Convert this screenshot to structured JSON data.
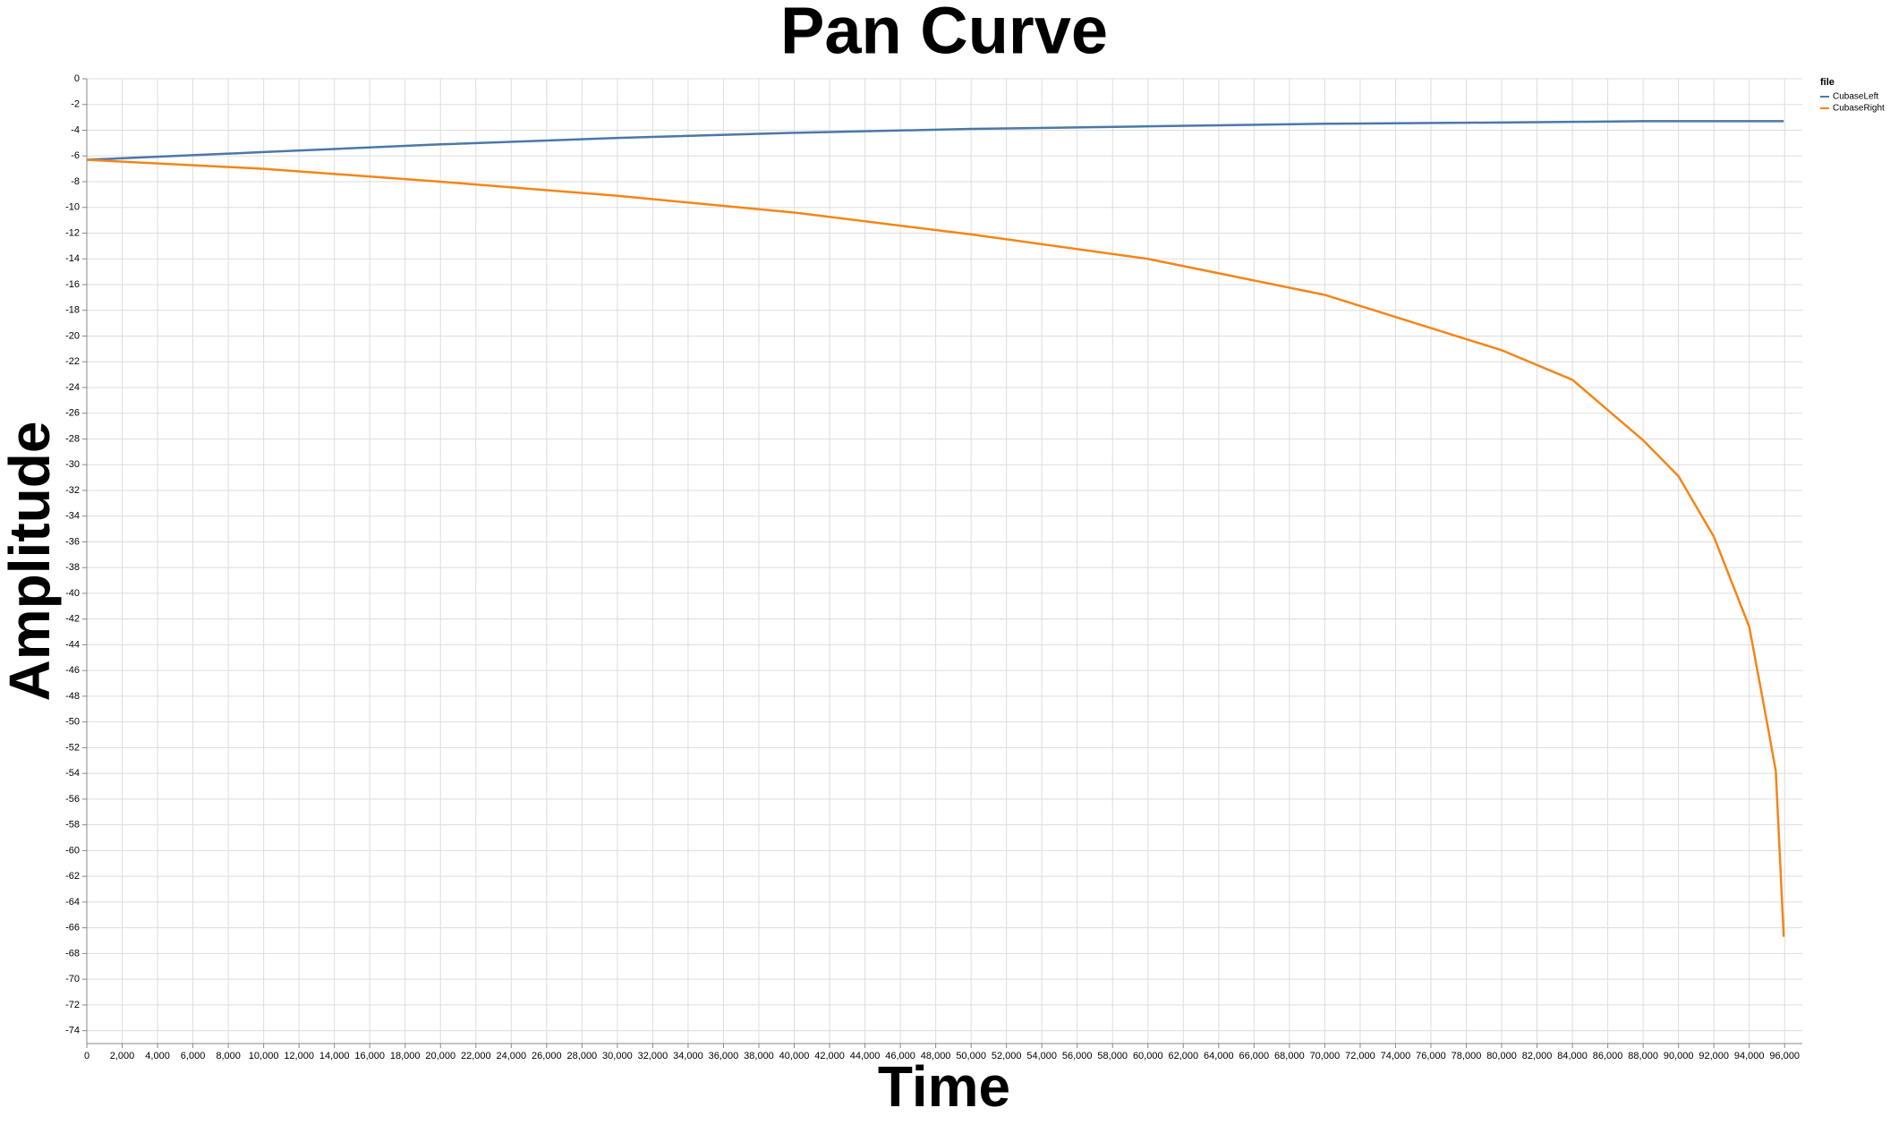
{
  "chart_data": {
    "type": "line",
    "title": "Pan Curve",
    "x_label": "Time",
    "y_label": "Amplitude",
    "legend_title": "file",
    "legend_position": "top-right",
    "grid": true,
    "x": [
      0,
      10000,
      20000,
      30000,
      40000,
      50000,
      60000,
      70000,
      80000,
      84000,
      88000,
      90000,
      92000,
      94000,
      95000,
      95500,
      95950
    ],
    "series": [
      {
        "name": "CubaseLeft",
        "color": "#4c78a8",
        "values": [
          -6.3,
          -5.7,
          -5.1,
          -4.6,
          -4.2,
          -3.9,
          -3.7,
          -3.5,
          -3.4,
          -3.35,
          -3.3,
          -3.3,
          -3.3,
          -3.3,
          -3.3,
          -3.3,
          -3.3
        ]
      },
      {
        "name": "CubaseRight",
        "color": "#f58518",
        "values": [
          -6.3,
          -7.0,
          -8.0,
          -9.1,
          -10.4,
          -12.1,
          -14.0,
          -16.8,
          -21.1,
          -23.4,
          -28.1,
          -30.9,
          -35.6,
          -42.6,
          -50,
          -53.8,
          -66.7
        ]
      }
    ],
    "xlim": [
      0,
      97000
    ],
    "ylim": [
      -75,
      0
    ],
    "xticks": [
      0,
      {
        "value": 2000,
        "label": "2,000"
      },
      {
        "value": 4000,
        "label": "4,000"
      },
      {
        "value": 6000,
        "label": "6,000"
      },
      {
        "value": 8000,
        "label": "8,000"
      },
      {
        "value": 10000,
        "label": "10,000"
      },
      {
        "value": 12000,
        "label": "12,000"
      },
      {
        "value": 14000,
        "label": "14,000"
      },
      {
        "value": 16000,
        "label": "16,000"
      },
      {
        "value": 18000,
        "label": "18,000"
      },
      {
        "value": 20000,
        "label": "20,000"
      },
      {
        "value": 22000,
        "label": "22,000"
      },
      {
        "value": 24000,
        "label": "24,000"
      },
      {
        "value": 26000,
        "label": "26,000"
      },
      {
        "value": 28000,
        "label": "28,000"
      },
      {
        "value": 30000,
        "label": "30,000"
      },
      {
        "value": 32000,
        "label": "32,000"
      },
      {
        "value": 34000,
        "label": "34,000"
      },
      {
        "value": 36000,
        "label": "36,000"
      },
      {
        "value": 38000,
        "label": "38,000"
      },
      {
        "value": 40000,
        "label": "40,000"
      },
      {
        "value": 42000,
        "label": "42,000"
      },
      {
        "value": 44000,
        "label": "44,000"
      },
      {
        "value": 46000,
        "label": "46,000"
      },
      {
        "value": 48000,
        "label": "48,000"
      },
      {
        "value": 50000,
        "label": "50,000"
      },
      {
        "value": 52000,
        "label": "52,000"
      },
      {
        "value": 54000,
        "label": "54,000"
      },
      {
        "value": 56000,
        "label": "56,000"
      },
      {
        "value": 58000,
        "label": "58,000"
      },
      {
        "value": 60000,
        "label": "60,000"
      },
      {
        "value": 62000,
        "label": "62,000"
      },
      {
        "value": 64000,
        "label": "64,000"
      },
      {
        "value": 66000,
        "label": "66,000"
      },
      {
        "value": 68000,
        "label": "68,000"
      },
      {
        "value": 70000,
        "label": "70,000"
      },
      {
        "value": 72000,
        "label": "72,000"
      },
      {
        "value": 74000,
        "label": "74,000"
      },
      {
        "value": 76000,
        "label": "76,000"
      },
      {
        "value": 78000,
        "label": "78,000"
      },
      {
        "value": 80000,
        "label": "80,000"
      },
      {
        "value": 82000,
        "label": "82,000"
      },
      {
        "value": 84000,
        "label": "84,000"
      },
      {
        "value": 86000,
        "label": "86,000"
      },
      {
        "value": 88000,
        "label": "88,000"
      },
      {
        "value": 90000,
        "label": "90,000"
      },
      {
        "value": 92000,
        "label": "92,000"
      },
      {
        "value": 94000,
        "label": "94,000"
      },
      {
        "value": 96000,
        "label": "96,000"
      }
    ],
    "yticks": [
      0,
      -2,
      -4,
      -6,
      -8,
      -10,
      -12,
      -14,
      -16,
      -18,
      -20,
      -22,
      -24,
      -26,
      -28,
      -30,
      -32,
      -34,
      -36,
      -38,
      -40,
      -42,
      -44,
      -46,
      -48,
      -50,
      -52,
      -54,
      -56,
      -58,
      -60,
      -62,
      -64,
      -66,
      -68,
      -70,
      -72,
      -74
    ]
  }
}
